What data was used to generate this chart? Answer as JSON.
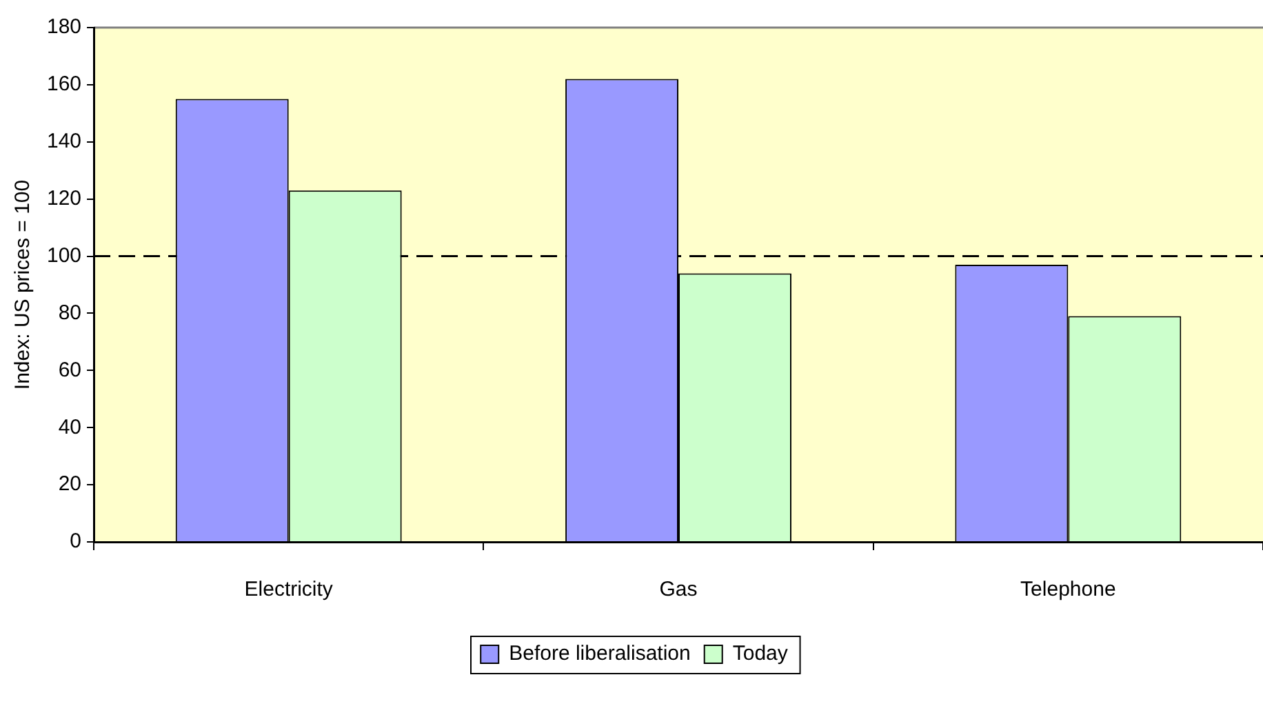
{
  "chart_data": {
    "type": "bar",
    "ylabel": "Index: US prices = 100",
    "categories": [
      "Electricity",
      "Gas",
      "Telephone"
    ],
    "series": [
      {
        "name": "Before liberalisation",
        "color": "#9999ff",
        "values": [
          155,
          162,
          97
        ]
      },
      {
        "name": "Today",
        "color": "#ccffcc",
        "values": [
          123,
          94,
          79
        ]
      }
    ],
    "ylim": [
      0,
      180
    ],
    "yticks": [
      0,
      20,
      40,
      60,
      80,
      100,
      120,
      140,
      160,
      180
    ],
    "grid": false,
    "legend": "bottom",
    "ref_lines": [
      {
        "axis": "y",
        "value": 100,
        "color": "#000000",
        "line_style": "dashed"
      }
    ]
  }
}
